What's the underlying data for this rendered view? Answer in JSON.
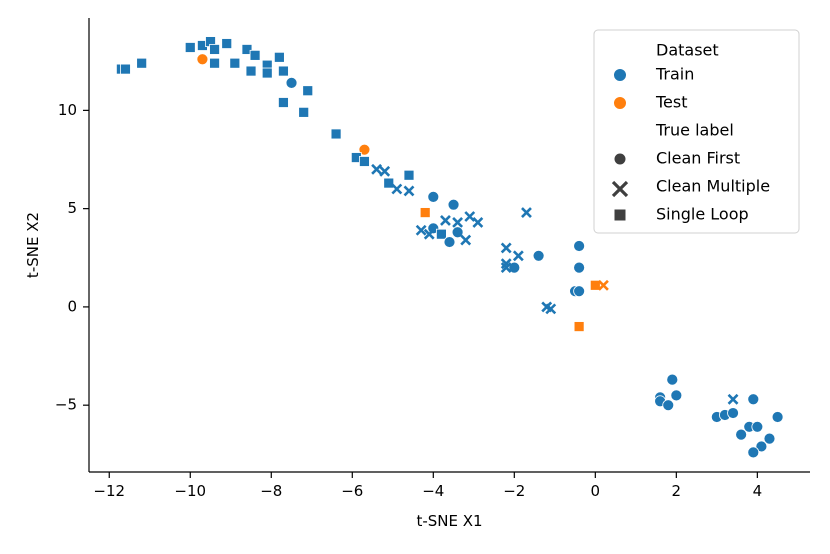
{
  "chart_data": {
    "type": "scatter",
    "title": "",
    "xlabel": "t-SNE X1",
    "ylabel": "t-SNE X2",
    "xlim": [
      -12.5,
      5.3
    ],
    "ylim": [
      -8.4,
      14.7
    ],
    "xticks": [
      -12,
      -10,
      -8,
      -6,
      -4,
      -2,
      0,
      2,
      4
    ],
    "yticks": [
      -5,
      0,
      5,
      10
    ],
    "tick_labels_x": [
      "−12",
      "−10",
      "−8",
      "−6",
      "−4",
      "−2",
      "0",
      "2",
      "4"
    ],
    "tick_labels_y": [
      "−5",
      "0",
      "5",
      "10"
    ],
    "colors": {
      "Train": "#1f77b4",
      "Test": "#ff7f0e"
    },
    "legend": {
      "placement": "top-right",
      "hue_title": "Dataset",
      "hue_entries": [
        "Train",
        "Test"
      ],
      "style_title": "True label",
      "style_entries": [
        "Clean First",
        "Clean Multiple",
        "Single Loop"
      ]
    },
    "points": [
      {
        "x": -11.7,
        "y": 12.1,
        "dataset": "Train",
        "label": "Single Loop"
      },
      {
        "x": -11.6,
        "y": 12.1,
        "dataset": "Train",
        "label": "Single Loop"
      },
      {
        "x": -11.2,
        "y": 12.4,
        "dataset": "Train",
        "label": "Single Loop"
      },
      {
        "x": -10.0,
        "y": 13.2,
        "dataset": "Train",
        "label": "Single Loop"
      },
      {
        "x": -9.7,
        "y": 13.3,
        "dataset": "Train",
        "label": "Single Loop"
      },
      {
        "x": -9.5,
        "y": 13.5,
        "dataset": "Train",
        "label": "Single Loop"
      },
      {
        "x": -9.4,
        "y": 13.1,
        "dataset": "Train",
        "label": "Single Loop"
      },
      {
        "x": -9.1,
        "y": 13.4,
        "dataset": "Train",
        "label": "Single Loop"
      },
      {
        "x": -8.9,
        "y": 12.4,
        "dataset": "Train",
        "label": "Single Loop"
      },
      {
        "x": -8.6,
        "y": 13.1,
        "dataset": "Train",
        "label": "Single Loop"
      },
      {
        "x": -8.4,
        "y": 12.8,
        "dataset": "Train",
        "label": "Single Loop"
      },
      {
        "x": -8.1,
        "y": 12.3,
        "dataset": "Train",
        "label": "Single Loop"
      },
      {
        "x": -8.5,
        "y": 12.0,
        "dataset": "Train",
        "label": "Single Loop"
      },
      {
        "x": -8.1,
        "y": 11.9,
        "dataset": "Train",
        "label": "Single Loop"
      },
      {
        "x": -7.8,
        "y": 12.7,
        "dataset": "Train",
        "label": "Single Loop"
      },
      {
        "x": -7.7,
        "y": 12.0,
        "dataset": "Train",
        "label": "Single Loop"
      },
      {
        "x": -9.4,
        "y": 12.4,
        "dataset": "Train",
        "label": "Single Loop"
      },
      {
        "x": -7.1,
        "y": 11.0,
        "dataset": "Train",
        "label": "Single Loop"
      },
      {
        "x": -7.7,
        "y": 10.4,
        "dataset": "Train",
        "label": "Single Loop"
      },
      {
        "x": -7.2,
        "y": 9.9,
        "dataset": "Train",
        "label": "Single Loop"
      },
      {
        "x": -7.5,
        "y": 11.4,
        "dataset": "Train",
        "label": "Clean First"
      },
      {
        "x": -9.7,
        "y": 12.6,
        "dataset": "Test",
        "label": "Clean First"
      },
      {
        "x": -6.4,
        "y": 8.8,
        "dataset": "Train",
        "label": "Single Loop"
      },
      {
        "x": -5.7,
        "y": 8.0,
        "dataset": "Test",
        "label": "Clean First"
      },
      {
        "x": -5.9,
        "y": 7.6,
        "dataset": "Train",
        "label": "Single Loop"
      },
      {
        "x": -5.7,
        "y": 7.4,
        "dataset": "Train",
        "label": "Single Loop"
      },
      {
        "x": -5.4,
        "y": 7.0,
        "dataset": "Train",
        "label": "Clean Multiple"
      },
      {
        "x": -5.2,
        "y": 6.9,
        "dataset": "Train",
        "label": "Clean Multiple"
      },
      {
        "x": -5.1,
        "y": 6.3,
        "dataset": "Train",
        "label": "Single Loop"
      },
      {
        "x": -4.9,
        "y": 6.0,
        "dataset": "Train",
        "label": "Clean Multiple"
      },
      {
        "x": -4.6,
        "y": 6.7,
        "dataset": "Train",
        "label": "Single Loop"
      },
      {
        "x": -4.6,
        "y": 5.9,
        "dataset": "Train",
        "label": "Clean Multiple"
      },
      {
        "x": -4.0,
        "y": 5.6,
        "dataset": "Train",
        "label": "Clean First"
      },
      {
        "x": -3.5,
        "y": 5.2,
        "dataset": "Train",
        "label": "Clean First"
      },
      {
        "x": -4.2,
        "y": 4.8,
        "dataset": "Test",
        "label": "Single Loop"
      },
      {
        "x": -3.7,
        "y": 4.4,
        "dataset": "Train",
        "label": "Clean Multiple"
      },
      {
        "x": -3.4,
        "y": 4.3,
        "dataset": "Train",
        "label": "Clean Multiple"
      },
      {
        "x": -3.1,
        "y": 4.6,
        "dataset": "Train",
        "label": "Clean Multiple"
      },
      {
        "x": -2.9,
        "y": 4.3,
        "dataset": "Train",
        "label": "Clean Multiple"
      },
      {
        "x": -4.3,
        "y": 3.9,
        "dataset": "Train",
        "label": "Clean Multiple"
      },
      {
        "x": -4.0,
        "y": 4.0,
        "dataset": "Train",
        "label": "Clean First"
      },
      {
        "x": -3.8,
        "y": 3.7,
        "dataset": "Train",
        "label": "Single Loop"
      },
      {
        "x": -3.6,
        "y": 3.3,
        "dataset": "Train",
        "label": "Clean First"
      },
      {
        "x": -3.4,
        "y": 3.8,
        "dataset": "Train",
        "label": "Clean First"
      },
      {
        "x": -3.2,
        "y": 3.4,
        "dataset": "Train",
        "label": "Clean Multiple"
      },
      {
        "x": -4.1,
        "y": 3.7,
        "dataset": "Train",
        "label": "Clean Multiple"
      },
      {
        "x": -1.7,
        "y": 4.8,
        "dataset": "Train",
        "label": "Clean Multiple"
      },
      {
        "x": -2.2,
        "y": 3.0,
        "dataset": "Train",
        "label": "Clean Multiple"
      },
      {
        "x": -1.9,
        "y": 2.6,
        "dataset": "Train",
        "label": "Clean Multiple"
      },
      {
        "x": -1.4,
        "y": 2.6,
        "dataset": "Train",
        "label": "Clean First"
      },
      {
        "x": -2.2,
        "y": 2.2,
        "dataset": "Train",
        "label": "Clean Multiple"
      },
      {
        "x": -2.0,
        "y": 2.0,
        "dataset": "Train",
        "label": "Clean First"
      },
      {
        "x": -2.2,
        "y": 2.0,
        "dataset": "Train",
        "label": "Clean Multiple"
      },
      {
        "x": -0.4,
        "y": 3.1,
        "dataset": "Train",
        "label": "Clean First"
      },
      {
        "x": -0.4,
        "y": 2.0,
        "dataset": "Train",
        "label": "Clean First"
      },
      {
        "x": -0.5,
        "y": 0.8,
        "dataset": "Train",
        "label": "Clean First"
      },
      {
        "x": -0.4,
        "y": 0.8,
        "dataset": "Train",
        "label": "Clean First"
      },
      {
        "x": 0.0,
        "y": 1.1,
        "dataset": "Test",
        "label": "Single Loop"
      },
      {
        "x": 0.2,
        "y": 1.1,
        "dataset": "Test",
        "label": "Clean Multiple"
      },
      {
        "x": -1.2,
        "y": 0.0,
        "dataset": "Train",
        "label": "Clean Multiple"
      },
      {
        "x": -1.1,
        "y": -0.1,
        "dataset": "Train",
        "label": "Clean Multiple"
      },
      {
        "x": -0.4,
        "y": -1.0,
        "dataset": "Test",
        "label": "Single Loop"
      },
      {
        "x": 1.9,
        "y": -3.7,
        "dataset": "Train",
        "label": "Clean First"
      },
      {
        "x": 1.6,
        "y": -4.6,
        "dataset": "Train",
        "label": "Clean First"
      },
      {
        "x": 2.0,
        "y": -4.5,
        "dataset": "Train",
        "label": "Clean First"
      },
      {
        "x": 1.6,
        "y": -4.8,
        "dataset": "Train",
        "label": "Clean First"
      },
      {
        "x": 1.8,
        "y": -5.0,
        "dataset": "Train",
        "label": "Clean First"
      },
      {
        "x": 3.0,
        "y": -5.6,
        "dataset": "Train",
        "label": "Clean First"
      },
      {
        "x": 3.2,
        "y": -5.5,
        "dataset": "Train",
        "label": "Clean First"
      },
      {
        "x": 3.4,
        "y": -5.4,
        "dataset": "Train",
        "label": "Clean First"
      },
      {
        "x": 3.4,
        "y": -4.7,
        "dataset": "Train",
        "label": "Clean Multiple"
      },
      {
        "x": 3.9,
        "y": -4.7,
        "dataset": "Train",
        "label": "Clean First"
      },
      {
        "x": 4.5,
        "y": -5.6,
        "dataset": "Train",
        "label": "Clean First"
      },
      {
        "x": 3.8,
        "y": -6.1,
        "dataset": "Train",
        "label": "Clean First"
      },
      {
        "x": 4.0,
        "y": -6.1,
        "dataset": "Train",
        "label": "Clean First"
      },
      {
        "x": 3.6,
        "y": -6.5,
        "dataset": "Train",
        "label": "Clean First"
      },
      {
        "x": 4.3,
        "y": -6.7,
        "dataset": "Train",
        "label": "Clean First"
      },
      {
        "x": 4.1,
        "y": -7.1,
        "dataset": "Train",
        "label": "Clean First"
      },
      {
        "x": 3.9,
        "y": -7.4,
        "dataset": "Train",
        "label": "Clean First"
      }
    ]
  }
}
